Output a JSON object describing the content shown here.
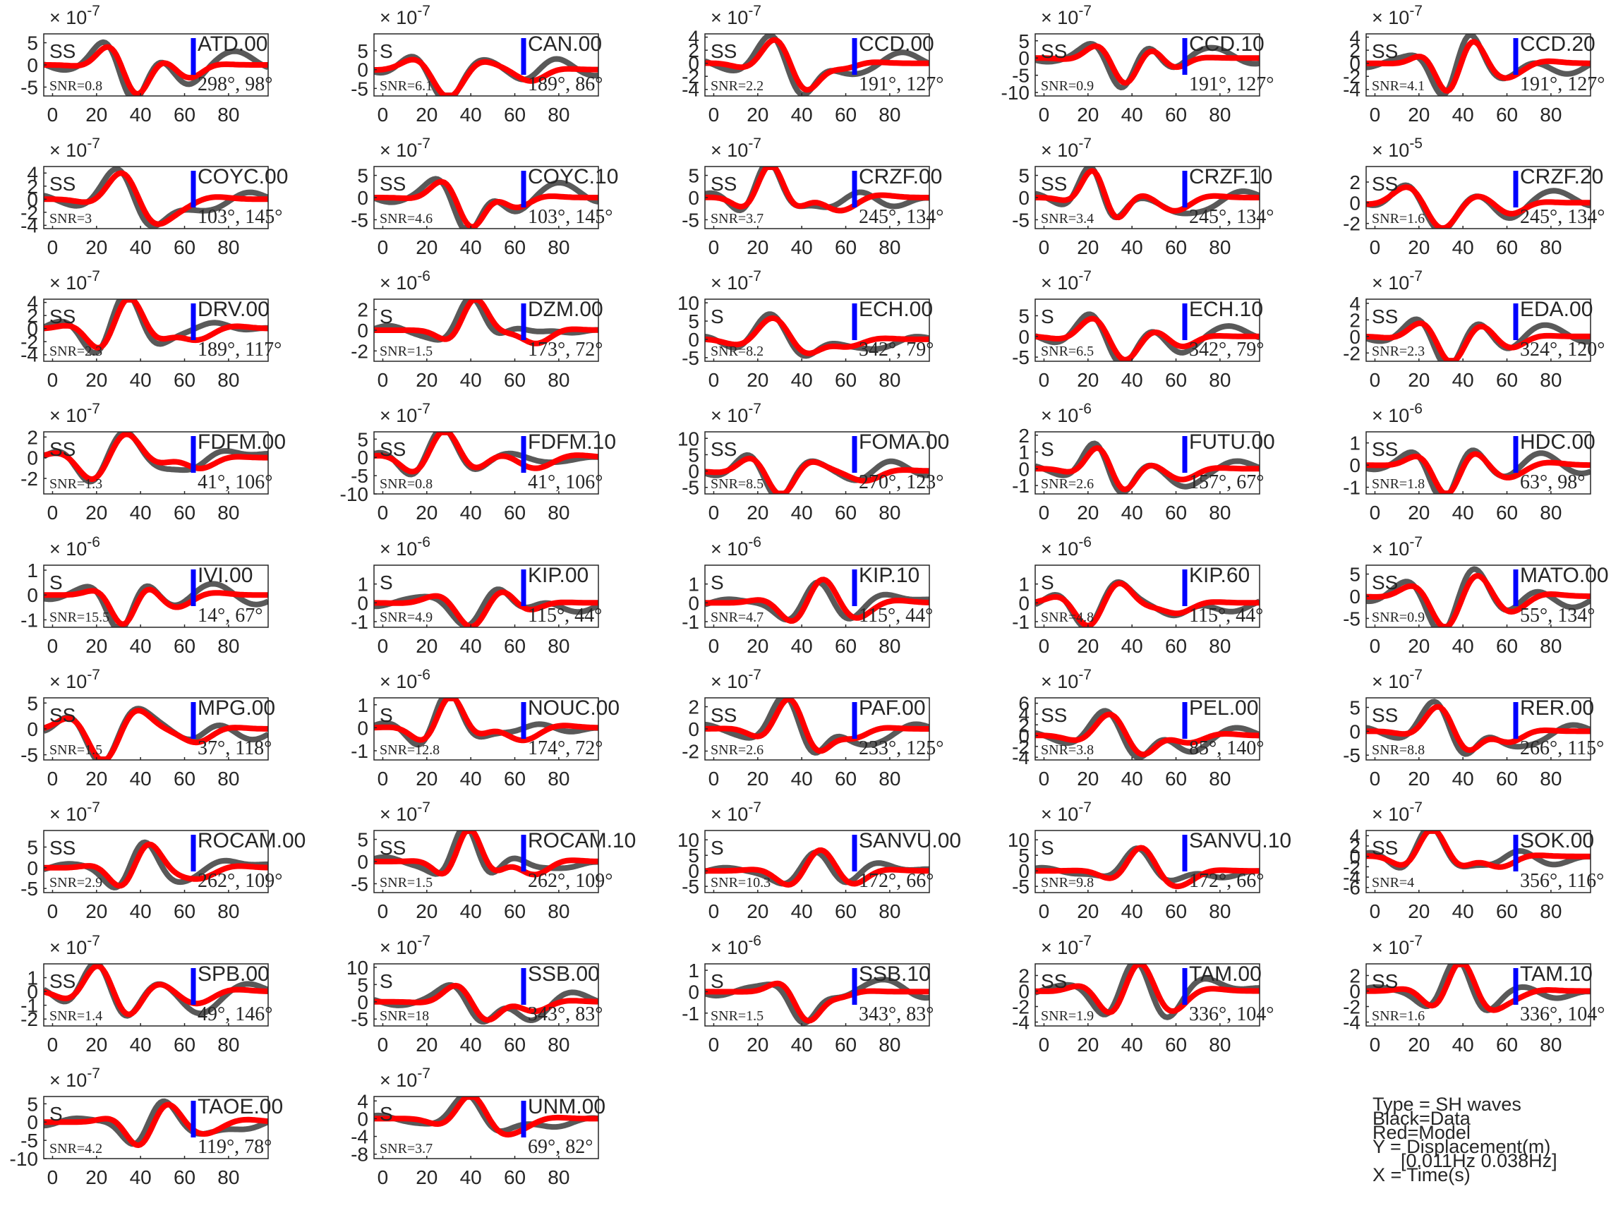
{
  "figure": {
    "colors": {
      "data": "#595959",
      "model": "#ff0000",
      "marker": "#0000ff",
      "axis": "#262626"
    },
    "common_x": {
      "ticks": [
        0,
        20,
        40,
        60,
        80
      ],
      "xlim": [
        -4,
        98
      ],
      "xlabel": "X = Time(s)"
    },
    "legend": [
      "Type = SH waves",
      "Black=Data",
      "Red=Model",
      "Y = Displacement(m)",
      "[0.011Hz 0.038Hz]",
      "X = Time(s)"
    ]
  },
  "chart_data": [
    {
      "type": "line",
      "station": "ATD.00",
      "phase": "SS",
      "snr": "SNR=0.8",
      "angles": "298°, 98°",
      "exponent": "-7",
      "yticks": [
        "5",
        "0",
        "-5"
      ],
      "ylim": [
        -7,
        7
      ],
      "series": [
        {
          "name": "Data"
        },
        {
          "name": "Model"
        }
      ]
    },
    {
      "type": "line",
      "station": "CAN.00",
      "phase": "S",
      "snr": "SNR=6.1",
      "angles": "189°, 86°",
      "exponent": "-7",
      "yticks": [
        "5",
        "0",
        "-5"
      ],
      "ylim": [
        -7,
        9.5
      ],
      "series": [
        {
          "name": "Data"
        },
        {
          "name": "Model"
        }
      ]
    },
    {
      "type": "line",
      "station": "CCD.00",
      "phase": "SS",
      "snr": "SNR=2.2",
      "angles": "191°, 127°",
      "exponent": "-7",
      "yticks": [
        "4",
        "2",
        "0",
        "-2",
        "-4"
      ],
      "ylim": [
        -5,
        4.5
      ],
      "series": [
        {
          "name": "Data"
        },
        {
          "name": "Model"
        }
      ]
    },
    {
      "type": "line",
      "station": "CCD.10",
      "phase": "SS",
      "snr": "SNR=0.9",
      "angles": "191°, 127°",
      "exponent": "-7",
      "yticks": [
        "5",
        "0",
        "-5",
        "-10"
      ],
      "ylim": [
        -11,
        7
      ],
      "series": [
        {
          "name": "Data"
        },
        {
          "name": "Model"
        }
      ]
    },
    {
      "type": "line",
      "station": "CCD.20",
      "phase": "SS",
      "snr": "SNR=4.1",
      "angles": "191°, 127°",
      "exponent": "-7",
      "yticks": [
        "4",
        "2",
        "0",
        "-2",
        "-4"
      ],
      "ylim": [
        -5,
        4.5
      ],
      "series": [
        {
          "name": "Data"
        },
        {
          "name": "Model"
        }
      ]
    },
    {
      "type": "line",
      "station": "COYC.00",
      "phase": "SS",
      "snr": "SNR=3",
      "angles": "103°, 145°",
      "exponent": "-7",
      "yticks": [
        "4",
        "2",
        "0",
        "-2",
        "-4"
      ],
      "ylim": [
        -4.5,
        5
      ],
      "series": [
        {
          "name": "Data"
        },
        {
          "name": "Model"
        }
      ]
    },
    {
      "type": "line",
      "station": "COYC.10",
      "phase": "SS",
      "snr": "SNR=4.6",
      "angles": "103°, 145°",
      "exponent": "-7",
      "yticks": [
        "5",
        "0",
        "-5"
      ],
      "ylim": [
        -7,
        7
      ],
      "series": [
        {
          "name": "Data"
        },
        {
          "name": "Model"
        }
      ]
    },
    {
      "type": "line",
      "station": "CRZF.00",
      "phase": "SS",
      "snr": "SNR=3.7",
      "angles": "245°, 134°",
      "exponent": "-7",
      "yticks": [
        "5",
        "0",
        "-5"
      ],
      "ylim": [
        -7,
        7
      ],
      "series": [
        {
          "name": "Data"
        },
        {
          "name": "Model"
        }
      ]
    },
    {
      "type": "line",
      "station": "CRZF.10",
      "phase": "SS",
      "snr": "SNR=3.4",
      "angles": "245°, 134°",
      "exponent": "-7",
      "yticks": [
        "5",
        "0",
        "-5"
      ],
      "ylim": [
        -7,
        7
      ],
      "series": [
        {
          "name": "Data"
        },
        {
          "name": "Model"
        }
      ]
    },
    {
      "type": "line",
      "station": "CRZF.20",
      "phase": "SS",
      "snr": "SNR=1.6",
      "angles": "245°, 134°",
      "exponent": "-5",
      "yticks": [
        "2",
        "0",
        "-2"
      ],
      "ylim": [
        -2.5,
        3.5
      ],
      "series": [
        {
          "name": "Data"
        },
        {
          "name": "Model"
        }
      ]
    },
    {
      "type": "line",
      "station": "DRV.00",
      "phase": "SS",
      "snr": "SNR=2.3",
      "angles": "189°, 117°",
      "exponent": "-7",
      "yticks": [
        "4",
        "2",
        "0",
        "-2",
        "-4"
      ],
      "ylim": [
        -5,
        4.5
      ],
      "series": [
        {
          "name": "Data"
        },
        {
          "name": "Model"
        }
      ]
    },
    {
      "type": "line",
      "station": "DZM.00",
      "phase": "S",
      "snr": "SNR=1.5",
      "angles": "173°, 72°",
      "exponent": "-6",
      "yticks": [
        "2",
        "0",
        "-2"
      ],
      "ylim": [
        -3,
        3
      ],
      "series": [
        {
          "name": "Data"
        },
        {
          "name": "Model"
        }
      ]
    },
    {
      "type": "line",
      "station": "ECH.00",
      "phase": "S",
      "snr": "SNR=8.2",
      "angles": "342°, 79°",
      "exponent": "-7",
      "yticks": [
        "10",
        "5",
        "0",
        "-5"
      ],
      "ylim": [
        -6,
        11
      ],
      "series": [
        {
          "name": "Data"
        },
        {
          "name": "Model"
        }
      ]
    },
    {
      "type": "line",
      "station": "ECH.10",
      "phase": "S",
      "snr": "SNR=6.5",
      "angles": "342°, 79°",
      "exponent": "-7",
      "yticks": [
        "5",
        "0",
        "-5"
      ],
      "ylim": [
        -6,
        9
      ],
      "series": [
        {
          "name": "Data"
        },
        {
          "name": "Model"
        }
      ]
    },
    {
      "type": "line",
      "station": "EDA.00",
      "phase": "SS",
      "snr": "SNR=2.3",
      "angles": "324°, 120°",
      "exponent": "-7",
      "yticks": [
        "4",
        "2",
        "0",
        "-2"
      ],
      "ylim": [
        -3,
        4.5
      ],
      "series": [
        {
          "name": "Data"
        },
        {
          "name": "Model"
        }
      ]
    },
    {
      "type": "line",
      "station": "FDFM.00",
      "phase": "SS",
      "snr": "SNR=1.3",
      "angles": "41°, 106°",
      "exponent": "-7",
      "yticks": [
        "2",
        "0",
        "-2"
      ],
      "ylim": [
        -3.5,
        2.5
      ],
      "series": [
        {
          "name": "Data"
        },
        {
          "name": "Model"
        }
      ]
    },
    {
      "type": "line",
      "station": "FDFM.10",
      "phase": "SS",
      "snr": "SNR=0.8",
      "angles": "41°, 106°",
      "exponent": "-7",
      "yticks": [
        "5",
        "0",
        "-5",
        "-10"
      ],
      "ylim": [
        -10,
        7
      ],
      "series": [
        {
          "name": "Data"
        },
        {
          "name": "Model"
        }
      ]
    },
    {
      "type": "line",
      "station": "FOMA.00",
      "phase": "SS",
      "snr": "SNR=8.5",
      "angles": "270°, 123°",
      "exponent": "-7",
      "yticks": [
        "10",
        "5",
        "0",
        "-5"
      ],
      "ylim": [
        -7,
        12
      ],
      "series": [
        {
          "name": "Data"
        },
        {
          "name": "Model"
        }
      ]
    },
    {
      "type": "line",
      "station": "FUTU.00",
      "phase": "S",
      "snr": "SNR=2.6",
      "angles": "157°, 67°",
      "exponent": "-6",
      "yticks": [
        "2",
        "1",
        "0",
        "-1"
      ],
      "ylim": [
        -1.5,
        2.2
      ],
      "series": [
        {
          "name": "Data"
        },
        {
          "name": "Model"
        }
      ]
    },
    {
      "type": "line",
      "station": "HDC.00",
      "phase": "SS",
      "snr": "SNR=1.8",
      "angles": "63°, 98°",
      "exponent": "-6",
      "yticks": [
        "1",
        "0",
        "-1"
      ],
      "ylim": [
        -1.3,
        1.5
      ],
      "series": [
        {
          "name": "Data"
        },
        {
          "name": "Model"
        }
      ]
    },
    {
      "type": "line",
      "station": "IVI.00",
      "phase": "S",
      "snr": "SNR=15.5",
      "angles": "14°, 67°",
      "exponent": "-6",
      "yticks": [
        "1",
        "0",
        "-1"
      ],
      "ylim": [
        -1.3,
        1.2
      ],
      "series": [
        {
          "name": "Data"
        },
        {
          "name": "Model"
        }
      ]
    },
    {
      "type": "line",
      "station": "KIP.00",
      "phase": "S",
      "snr": "SNR=4.9",
      "angles": "115°, 44°",
      "exponent": "-6",
      "yticks": [
        "1",
        "0",
        "-1"
      ],
      "ylim": [
        -1.3,
        2
      ],
      "series": [
        {
          "name": "Data"
        },
        {
          "name": "Model"
        }
      ]
    },
    {
      "type": "line",
      "station": "KIP.10",
      "phase": "S",
      "snr": "SNR=4.7",
      "angles": "115°, 44°",
      "exponent": "-6",
      "yticks": [
        "1",
        "0",
        "-1"
      ],
      "ylim": [
        -1.3,
        2
      ],
      "series": [
        {
          "name": "Data"
        },
        {
          "name": "Model"
        }
      ]
    },
    {
      "type": "line",
      "station": "KIP.60",
      "phase": "S",
      "snr": "SNR=4.8",
      "angles": "115°, 44°",
      "exponent": "-6",
      "yticks": [
        "1",
        "0",
        "-1"
      ],
      "ylim": [
        -1.3,
        2
      ],
      "series": [
        {
          "name": "Data"
        },
        {
          "name": "Model"
        }
      ]
    },
    {
      "type": "line",
      "station": "MATO.00",
      "phase": "SS",
      "snr": "SNR=0.9",
      "angles": "55°, 134°",
      "exponent": "-7",
      "yticks": [
        "5",
        "0",
        "-5"
      ],
      "ylim": [
        -7,
        7
      ],
      "series": [
        {
          "name": "Data"
        },
        {
          "name": "Model"
        }
      ]
    },
    {
      "type": "line",
      "station": "MPG.00",
      "phase": "SS",
      "snr": "SNR=1.5",
      "angles": "37°, 118°",
      "exponent": "-7",
      "yticks": [
        "5",
        "0",
        "-5"
      ],
      "ylim": [
        -6,
        6
      ],
      "series": [
        {
          "name": "Data"
        },
        {
          "name": "Model"
        }
      ]
    },
    {
      "type": "line",
      "station": "NOUC.00",
      "phase": "S",
      "snr": "SNR=12.8",
      "angles": "174°, 72°",
      "exponent": "-6",
      "yticks": [
        "1",
        "0",
        "-1"
      ],
      "ylim": [
        -1.4,
        1.3
      ],
      "series": [
        {
          "name": "Data"
        },
        {
          "name": "Model"
        }
      ]
    },
    {
      "type": "line",
      "station": "PAF.00",
      "phase": "SS",
      "snr": "SNR=2.6",
      "angles": "233°, 125°",
      "exponent": "-7",
      "yticks": [
        "2",
        "0",
        "-2"
      ],
      "ylim": [
        -2.8,
        2.8
      ],
      "series": [
        {
          "name": "Data"
        },
        {
          "name": "Model"
        }
      ]
    },
    {
      "type": "line",
      "station": "PEL.00",
      "phase": "SS",
      "snr": "SNR=3.8",
      "angles": "85°, 140°",
      "exponent": "-7",
      "yticks": [
        "6",
        "4",
        "2",
        "0",
        "-2",
        "-4"
      ],
      "ylim": [
        -4.5,
        7
      ],
      "series": [
        {
          "name": "Data"
        },
        {
          "name": "Model"
        }
      ]
    },
    {
      "type": "line",
      "station": "RER.00",
      "phase": "SS",
      "snr": "SNR=8.8",
      "angles": "266°, 115°",
      "exponent": "-7",
      "yticks": [
        "5",
        "0",
        "-5"
      ],
      "ylim": [
        -6,
        7
      ],
      "series": [
        {
          "name": "Data"
        },
        {
          "name": "Model"
        }
      ]
    },
    {
      "type": "line",
      "station": "ROCAM.00",
      "phase": "SS",
      "snr": "SNR=2.9",
      "angles": "262°, 109°",
      "exponent": "-7",
      "yticks": [
        "5",
        "0",
        "-5"
      ],
      "ylim": [
        -6,
        9
      ],
      "series": [
        {
          "name": "Data"
        },
        {
          "name": "Model"
        }
      ]
    },
    {
      "type": "line",
      "station": "ROCAM.10",
      "phase": "SS",
      "snr": "SNR=1.5",
      "angles": "262°, 109°",
      "exponent": "-7",
      "yticks": [
        "5",
        "0",
        "-5"
      ],
      "ylim": [
        -7,
        7
      ],
      "series": [
        {
          "name": "Data"
        },
        {
          "name": "Model"
        }
      ]
    },
    {
      "type": "line",
      "station": "SANVU.00",
      "phase": "S",
      "snr": "SNR=10.3",
      "angles": "172°, 66°",
      "exponent": "-7",
      "yticks": [
        "10",
        "5",
        "0",
        "-5"
      ],
      "ylim": [
        -7,
        13
      ],
      "series": [
        {
          "name": "Data"
        },
        {
          "name": "Model"
        }
      ]
    },
    {
      "type": "line",
      "station": "SANVU.10",
      "phase": "S",
      "snr": "SNR=9.8",
      "angles": "172°, 66°",
      "exponent": "-7",
      "yticks": [
        "10",
        "5",
        "0",
        "-5"
      ],
      "ylim": [
        -7,
        13
      ],
      "series": [
        {
          "name": "Data"
        },
        {
          "name": "Model"
        }
      ]
    },
    {
      "type": "line",
      "station": "SOK.00",
      "phase": "SS",
      "snr": "SNR=4",
      "angles": "356°, 116°",
      "exponent": "-7",
      "yticks": [
        "4",
        "2",
        "0",
        "-2",
        "-4",
        "-6"
      ],
      "ylim": [
        -7,
        5
      ],
      "series": [
        {
          "name": "Data"
        },
        {
          "name": "Model"
        }
      ]
    },
    {
      "type": "line",
      "station": "SPB.00",
      "phase": "SS",
      "snr": "SNR=1.4",
      "angles": "49°, 146°",
      "exponent": "-7",
      "yticks": [
        "1",
        "0",
        "-1",
        "-2"
      ],
      "ylim": [
        -2.5,
        2
      ],
      "series": [
        {
          "name": "Data"
        },
        {
          "name": "Model"
        }
      ]
    },
    {
      "type": "line",
      "station": "SSB.00",
      "phase": "S",
      "snr": "SNR=18",
      "angles": "343°, 83°",
      "exponent": "-7",
      "yticks": [
        "10",
        "5",
        "0",
        "-5"
      ],
      "ylim": [
        -7,
        11
      ],
      "series": [
        {
          "name": "Data"
        },
        {
          "name": "Model"
        }
      ]
    },
    {
      "type": "line",
      "station": "SSB.10",
      "phase": "S",
      "snr": "SNR=1.5",
      "angles": "343°, 83°",
      "exponent": "-6",
      "yticks": [
        "1",
        "0",
        "-1"
      ],
      "ylim": [
        -1.6,
        1.3
      ],
      "series": [
        {
          "name": "Data"
        },
        {
          "name": "Model"
        }
      ]
    },
    {
      "type": "line",
      "station": "TAM.00",
      "phase": "SS",
      "snr": "SNR=1.9",
      "angles": "336°, 104°",
      "exponent": "-7",
      "yticks": [
        "2",
        "0",
        "-2",
        "-4"
      ],
      "ylim": [
        -4.5,
        3.5
      ],
      "series": [
        {
          "name": "Data"
        },
        {
          "name": "Model"
        }
      ]
    },
    {
      "type": "line",
      "station": "TAM.10",
      "phase": "SS",
      "snr": "SNR=1.6",
      "angles": "336°, 104°",
      "exponent": "-7",
      "yticks": [
        "2",
        "0",
        "-2",
        "-4"
      ],
      "ylim": [
        -4.5,
        3.5
      ],
      "series": [
        {
          "name": "Data"
        },
        {
          "name": "Model"
        }
      ]
    },
    {
      "type": "line",
      "station": "TAOE.00",
      "phase": "S",
      "snr": "SNR=4.2",
      "angles": "119°, 78°",
      "exponent": "-7",
      "yticks": [
        "5",
        "0",
        "-5",
        "-10"
      ],
      "ylim": [
        -10,
        7
      ],
      "series": [
        {
          "name": "Data"
        },
        {
          "name": "Model"
        }
      ]
    },
    {
      "type": "line",
      "station": "UNM.00",
      "phase": "S",
      "snr": "SNR=3.7",
      "angles": "69°, 82°",
      "exponent": "-7",
      "yticks": [
        "4",
        "0",
        "-4",
        "-8"
      ],
      "ylim": [
        -9,
        5
      ],
      "series": [
        {
          "name": "Data"
        },
        {
          "name": "Model"
        }
      ]
    }
  ]
}
